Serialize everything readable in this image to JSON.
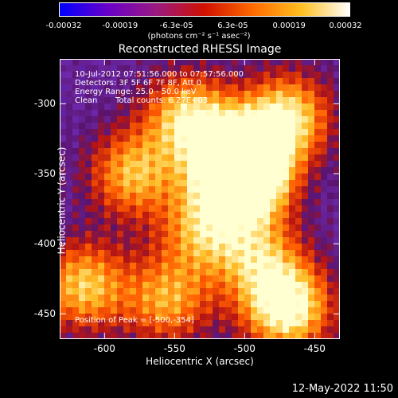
{
  "chart_data": {
    "type": "heatmap",
    "title": "Reconstructed RHESSI Image",
    "xlabel": "Heliocentric X (arcsec)",
    "ylabel": "Heliocentric Y (arcsec)",
    "xlim": [
      -632,
      -432
    ],
    "ylim": [
      -468,
      -268
    ],
    "xticks": [
      "-600",
      "-550",
      "-500",
      "-450"
    ],
    "xtick_values": [
      -600,
      -550,
      -500,
      -450
    ],
    "yticks": [
      "-300",
      "-350",
      "-400",
      "-450"
    ],
    "ytick_values": [
      -300,
      -350,
      -400,
      -450
    ],
    "colorbar": {
      "ticks": [
        "-0.00032",
        "-0.00019",
        "-6.3e-05",
        "6.3e-05",
        "0.00019",
        "0.00032"
      ],
      "units": "(photons cm⁻² s⁻¹ asec⁻²)",
      "colors": [
        "#0000ff",
        "#6a00c8",
        "#9a1a80",
        "#d01000",
        "#ff6a00",
        "#ffc020",
        "#ffffff"
      ]
    },
    "annotations": {
      "time_range": "10-Jul-2012 07:51:56.000 to 07:57:56.000",
      "detectors": "Detectors: 3F 5F 6F 7F 8F, Att 0",
      "energy": "Energy Range: 25.0 - 50.0 keV",
      "method": "Clean",
      "counts": "Total counts: 6.27E+03",
      "peak": "Position of Peak = [-500,-354]"
    },
    "peak": {
      "x": -500,
      "y": -354
    },
    "bright_regions": [
      {
        "x": -505,
        "y": -340,
        "level": 0.95
      },
      {
        "x": -500,
        "y": -354,
        "level": 1.0
      },
      {
        "x": -470,
        "y": -310,
        "level": 0.8
      },
      {
        "x": -540,
        "y": -310,
        "level": 0.75
      },
      {
        "x": -580,
        "y": -350,
        "level": 0.65
      },
      {
        "x": -470,
        "y": -445,
        "level": 0.95
      },
      {
        "x": -615,
        "y": -430,
        "level": 0.7
      },
      {
        "x": -555,
        "y": -440,
        "level": 0.6
      },
      {
        "x": -530,
        "y": -390,
        "level": 0.6
      },
      {
        "x": -490,
        "y": -410,
        "level": 0.55
      }
    ]
  },
  "footer": {
    "date": "12-May-2022 11:50"
  }
}
